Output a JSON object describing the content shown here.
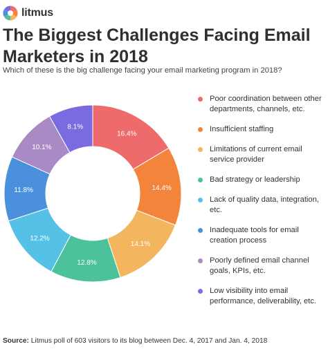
{
  "brand": {
    "name": "litmus",
    "icon": "litmus-logo-icon"
  },
  "title": "The Biggest Challenges Facing Email Marketers in 2018",
  "subtitle": "Which of these is the big challenge facing your email marketing program in 2018?",
  "source": {
    "label": "Source:",
    "text": "Litmus poll of 603 visitors to its blog between Dec. 4, 2017 and Jan. 4, 2018"
  },
  "chart_data": {
    "type": "pie",
    "donut": true,
    "legend_placement": "right",
    "slices": [
      {
        "label": "Poor coordination between other departments, channels, etc.",
        "value": 16.4,
        "value_label": "16.4%",
        "color": "#ef6b6b"
      },
      {
        "label": "Insufficient staffing",
        "value": 14.4,
        "value_label": "14.4%",
        "color": "#f2853b"
      },
      {
        "label": "Limitations of current email service provider",
        "value": 14.1,
        "value_label": "14.1%",
        "color": "#f3b55d"
      },
      {
        "label": "Bad strategy or leadership",
        "value": 12.8,
        "value_label": "12.8%",
        "color": "#4bc29c"
      },
      {
        "label": "Lack of quality data, integration, etc.",
        "value": 12.2,
        "value_label": "12.2%",
        "color": "#55c1e6"
      },
      {
        "label": "Inadequate tools for email creation process",
        "value": 11.8,
        "value_label": "11.8%",
        "color": "#4a90dc"
      },
      {
        "label": "Poorly defined email channel goals, KPIs, etc.",
        "value": 10.1,
        "value_label": "10.1%",
        "color": "#a98ac4"
      },
      {
        "label": "Low visibility into email performance, deliverability, etc.",
        "value": 8.1,
        "value_label": "8.1%",
        "color": "#7a6be0"
      }
    ]
  }
}
